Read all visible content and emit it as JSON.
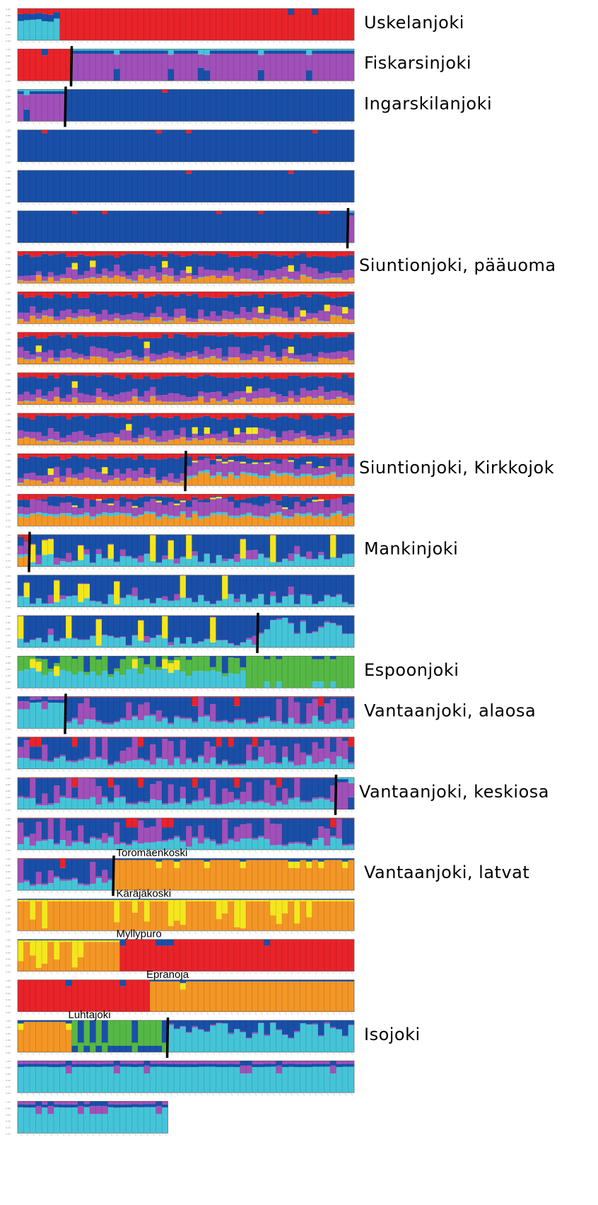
{
  "chart_data": {
    "type": "bar",
    "stacked": true,
    "description_of_values": "Each row is a STRUCTURE-style stacked bar plot of membership proportions (0-1) across 6 clusters.",
    "ylim": [
      0,
      1
    ],
    "clusters": [
      {
        "name": "red",
        "color": "#e8232a"
      },
      {
        "name": "purple",
        "color": "#a050b8"
      },
      {
        "name": "blue",
        "color": "#1a4fa8"
      },
      {
        "name": "cyan",
        "color": "#45c4d8"
      },
      {
        "name": "green",
        "color": "#55b846"
      },
      {
        "name": "orange",
        "color": "#f39626"
      },
      {
        "name": "yellow",
        "color": "#f4e61e"
      }
    ],
    "rows": [
      {
        "n": 56,
        "segments": [
          {
            "from": 0,
            "to": 7,
            "profile": "cyan-mix"
          },
          {
            "from": 7,
            "to": 56,
            "profile": "red"
          }
        ]
      },
      {
        "n": 56,
        "segments": [
          {
            "from": 0,
            "to": 9,
            "profile": "red"
          },
          {
            "from": 9,
            "to": 56,
            "profile": "purple"
          }
        ]
      },
      {
        "n": 56,
        "segments": [
          {
            "from": 0,
            "to": 8,
            "profile": "purple"
          },
          {
            "from": 8,
            "to": 56,
            "profile": "blue"
          }
        ]
      },
      {
        "n": 56,
        "segments": [
          {
            "from": 0,
            "to": 56,
            "profile": "blue"
          }
        ]
      },
      {
        "n": 56,
        "segments": [
          {
            "from": 0,
            "to": 56,
            "profile": "blue"
          }
        ]
      },
      {
        "n": 56,
        "segments": [
          {
            "from": 0,
            "to": 55,
            "profile": "blue"
          },
          {
            "from": 55,
            "to": 56,
            "profile": "purple"
          }
        ]
      },
      {
        "n": 56,
        "segments": [
          {
            "from": 0,
            "to": 56,
            "profile": "siuntio"
          }
        ]
      },
      {
        "n": 56,
        "segments": [
          {
            "from": 0,
            "to": 56,
            "profile": "siuntio"
          }
        ]
      },
      {
        "n": 56,
        "segments": [
          {
            "from": 0,
            "to": 56,
            "profile": "siuntio"
          }
        ]
      },
      {
        "n": 56,
        "segments": [
          {
            "from": 0,
            "to": 56,
            "profile": "siuntio"
          }
        ]
      },
      {
        "n": 56,
        "segments": [
          {
            "from": 0,
            "to": 56,
            "profile": "siuntio"
          }
        ]
      },
      {
        "n": 56,
        "segments": [
          {
            "from": 0,
            "to": 28,
            "profile": "siuntio"
          },
          {
            "from": 28,
            "to": 56,
            "profile": "kirkkojoki"
          }
        ]
      },
      {
        "n": 56,
        "segments": [
          {
            "from": 0,
            "to": 56,
            "profile": "kirkkojoki"
          }
        ]
      },
      {
        "n": 56,
        "segments": [
          {
            "from": 0,
            "to": 2,
            "profile": "kirkkojoki"
          },
          {
            "from": 2,
            "to": 56,
            "profile": "mankinjoki"
          }
        ]
      },
      {
        "n": 56,
        "segments": [
          {
            "from": 0,
            "to": 56,
            "profile": "mankinjoki"
          }
        ]
      },
      {
        "n": 56,
        "segments": [
          {
            "from": 0,
            "to": 40,
            "profile": "mankinjoki"
          },
          {
            "from": 40,
            "to": 56,
            "profile": "cyan-blue"
          }
        ]
      },
      {
        "n": 56,
        "segments": [
          {
            "from": 0,
            "to": 38,
            "profile": "cyan-green"
          },
          {
            "from": 38,
            "to": 56,
            "profile": "green"
          }
        ]
      },
      {
        "n": 56,
        "segments": [
          {
            "from": 0,
            "to": 8,
            "profile": "cyan"
          },
          {
            "from": 8,
            "to": 56,
            "profile": "vantaa"
          }
        ]
      },
      {
        "n": 56,
        "segments": [
          {
            "from": 0,
            "to": 56,
            "profile": "vantaa"
          }
        ]
      },
      {
        "n": 56,
        "segments": [
          {
            "from": 0,
            "to": 53,
            "profile": "vantaa"
          },
          {
            "from": 53,
            "to": 56,
            "profile": "purple"
          }
        ]
      },
      {
        "n": 56,
        "segments": [
          {
            "from": 0,
            "to": 56,
            "profile": "vantaa"
          }
        ]
      },
      {
        "n": 56,
        "segments": [
          {
            "from": 0,
            "to": 16,
            "profile": "vantaa"
          },
          {
            "from": 16,
            "to": 56,
            "profile": "orange"
          }
        ]
      },
      {
        "n": 56,
        "segments": [
          {
            "from": 0,
            "to": 56,
            "profile": "orange-yellow"
          }
        ]
      },
      {
        "n": 56,
        "segments": [
          {
            "from": 0,
            "to": 17,
            "profile": "orange-yellow"
          },
          {
            "from": 17,
            "to": 56,
            "profile": "red"
          }
        ]
      },
      {
        "n": 56,
        "segments": [
          {
            "from": 0,
            "to": 22,
            "profile": "red"
          },
          {
            "from": 22,
            "to": 56,
            "profile": "orange"
          }
        ]
      },
      {
        "n": 56,
        "segments": [
          {
            "from": 0,
            "to": 9,
            "profile": "orange"
          },
          {
            "from": 9,
            "to": 25,
            "profile": "green-blue"
          },
          {
            "from": 25,
            "to": 56,
            "profile": "cyan-blue"
          }
        ]
      },
      {
        "n": 56,
        "segments": [
          {
            "from": 0,
            "to": 56,
            "profile": "cyan"
          }
        ]
      },
      {
        "n": 25,
        "segments": [
          {
            "from": 0,
            "to": 25,
            "profile": "cyan"
          }
        ]
      }
    ],
    "dividers": [
      {
        "row": 1,
        "at": 9
      },
      {
        "row": 2,
        "at": 8
      },
      {
        "row": 5,
        "at": 55
      },
      {
        "row": 11,
        "at": 28
      },
      {
        "row": 13,
        "at": 2
      },
      {
        "row": 15,
        "at": 40
      },
      {
        "row": 17,
        "at": 8
      },
      {
        "row": 19,
        "at": 53
      },
      {
        "row": 21,
        "at": 16
      },
      {
        "row": 25,
        "at": 25
      }
    ],
    "river_labels": [
      {
        "row": 0,
        "text": "Uskelanjoki"
      },
      {
        "row": 1,
        "text": "Fiskarsinjoki"
      },
      {
        "row": 2,
        "text": "Ingarskilanjoki"
      },
      {
        "row": 6,
        "text": "Siuntionjoki, pääuoma"
      },
      {
        "row": 11,
        "text": "Siuntionjoki, Kirkkojok"
      },
      {
        "row": 13,
        "text": "Mankinjoki"
      },
      {
        "row": 16,
        "text": "Espoonjoki"
      },
      {
        "row": 17,
        "text": "Vantaanjoki, alaosa"
      },
      {
        "row": 19,
        "text": "Vantaanjoki, keskiosa"
      },
      {
        "row": 21,
        "text": "Vantaanjoki, latvat"
      },
      {
        "row": 25,
        "text": "Isojoki"
      }
    ],
    "site_labels": [
      {
        "row": 21,
        "at": 17,
        "text": "Toromäenkoski"
      },
      {
        "row": 22,
        "at": 17,
        "text": "Käräjäkoski"
      },
      {
        "row": 23,
        "at": 17,
        "text": "Myllypuro"
      },
      {
        "row": 24,
        "at": 22,
        "text": "Epranoja"
      },
      {
        "row": 25,
        "at": 9,
        "text": "Luhtajoki"
      }
    ],
    "yticks": [
      "1.00",
      "0.80",
      "0.60",
      "0.40",
      "0.20",
      "0.00"
    ]
  }
}
